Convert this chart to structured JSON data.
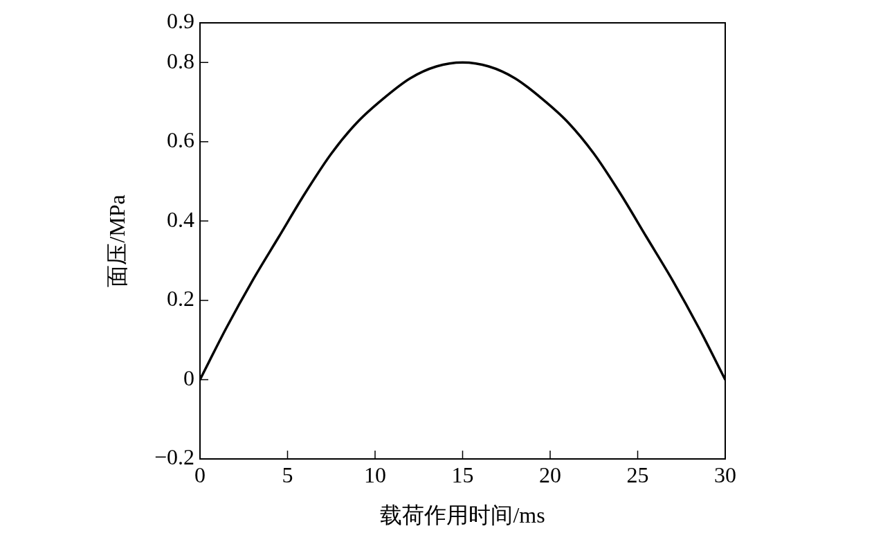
{
  "chart_data": {
    "type": "line",
    "xlabel": "载荷作用时间/ms",
    "ylabel": "面压/MPa",
    "x": [
      0,
      1.5,
      3,
      4.5,
      6,
      7.5,
      9,
      10.5,
      12,
      13.5,
      15,
      16.5,
      18,
      19.5,
      21,
      22.5,
      24,
      25.5,
      27,
      28.5,
      30
    ],
    "series": [
      {
        "color": "#000000",
        "values": [
          0,
          0.13,
          0.25,
          0.36,
          0.47,
          0.57,
          0.65,
          0.71,
          0.76,
          0.79,
          0.8,
          0.79,
          0.76,
          0.71,
          0.65,
          0.57,
          0.47,
          0.36,
          0.25,
          0.13,
          0
        ]
      }
    ],
    "xlim": [
      0,
      30
    ],
    "xticks": [
      0,
      5,
      10,
      15,
      20,
      25,
      30
    ],
    "ylim": [
      -0.2,
      0.9
    ],
    "yticks": [
      {
        "value": -0.2,
        "label": "−0.2"
      },
      0,
      0.2,
      0.4,
      0.6,
      0.8,
      0.9
    ],
    "grid": false,
    "legend": false,
    "marker": "none",
    "line_style": "solid"
  }
}
